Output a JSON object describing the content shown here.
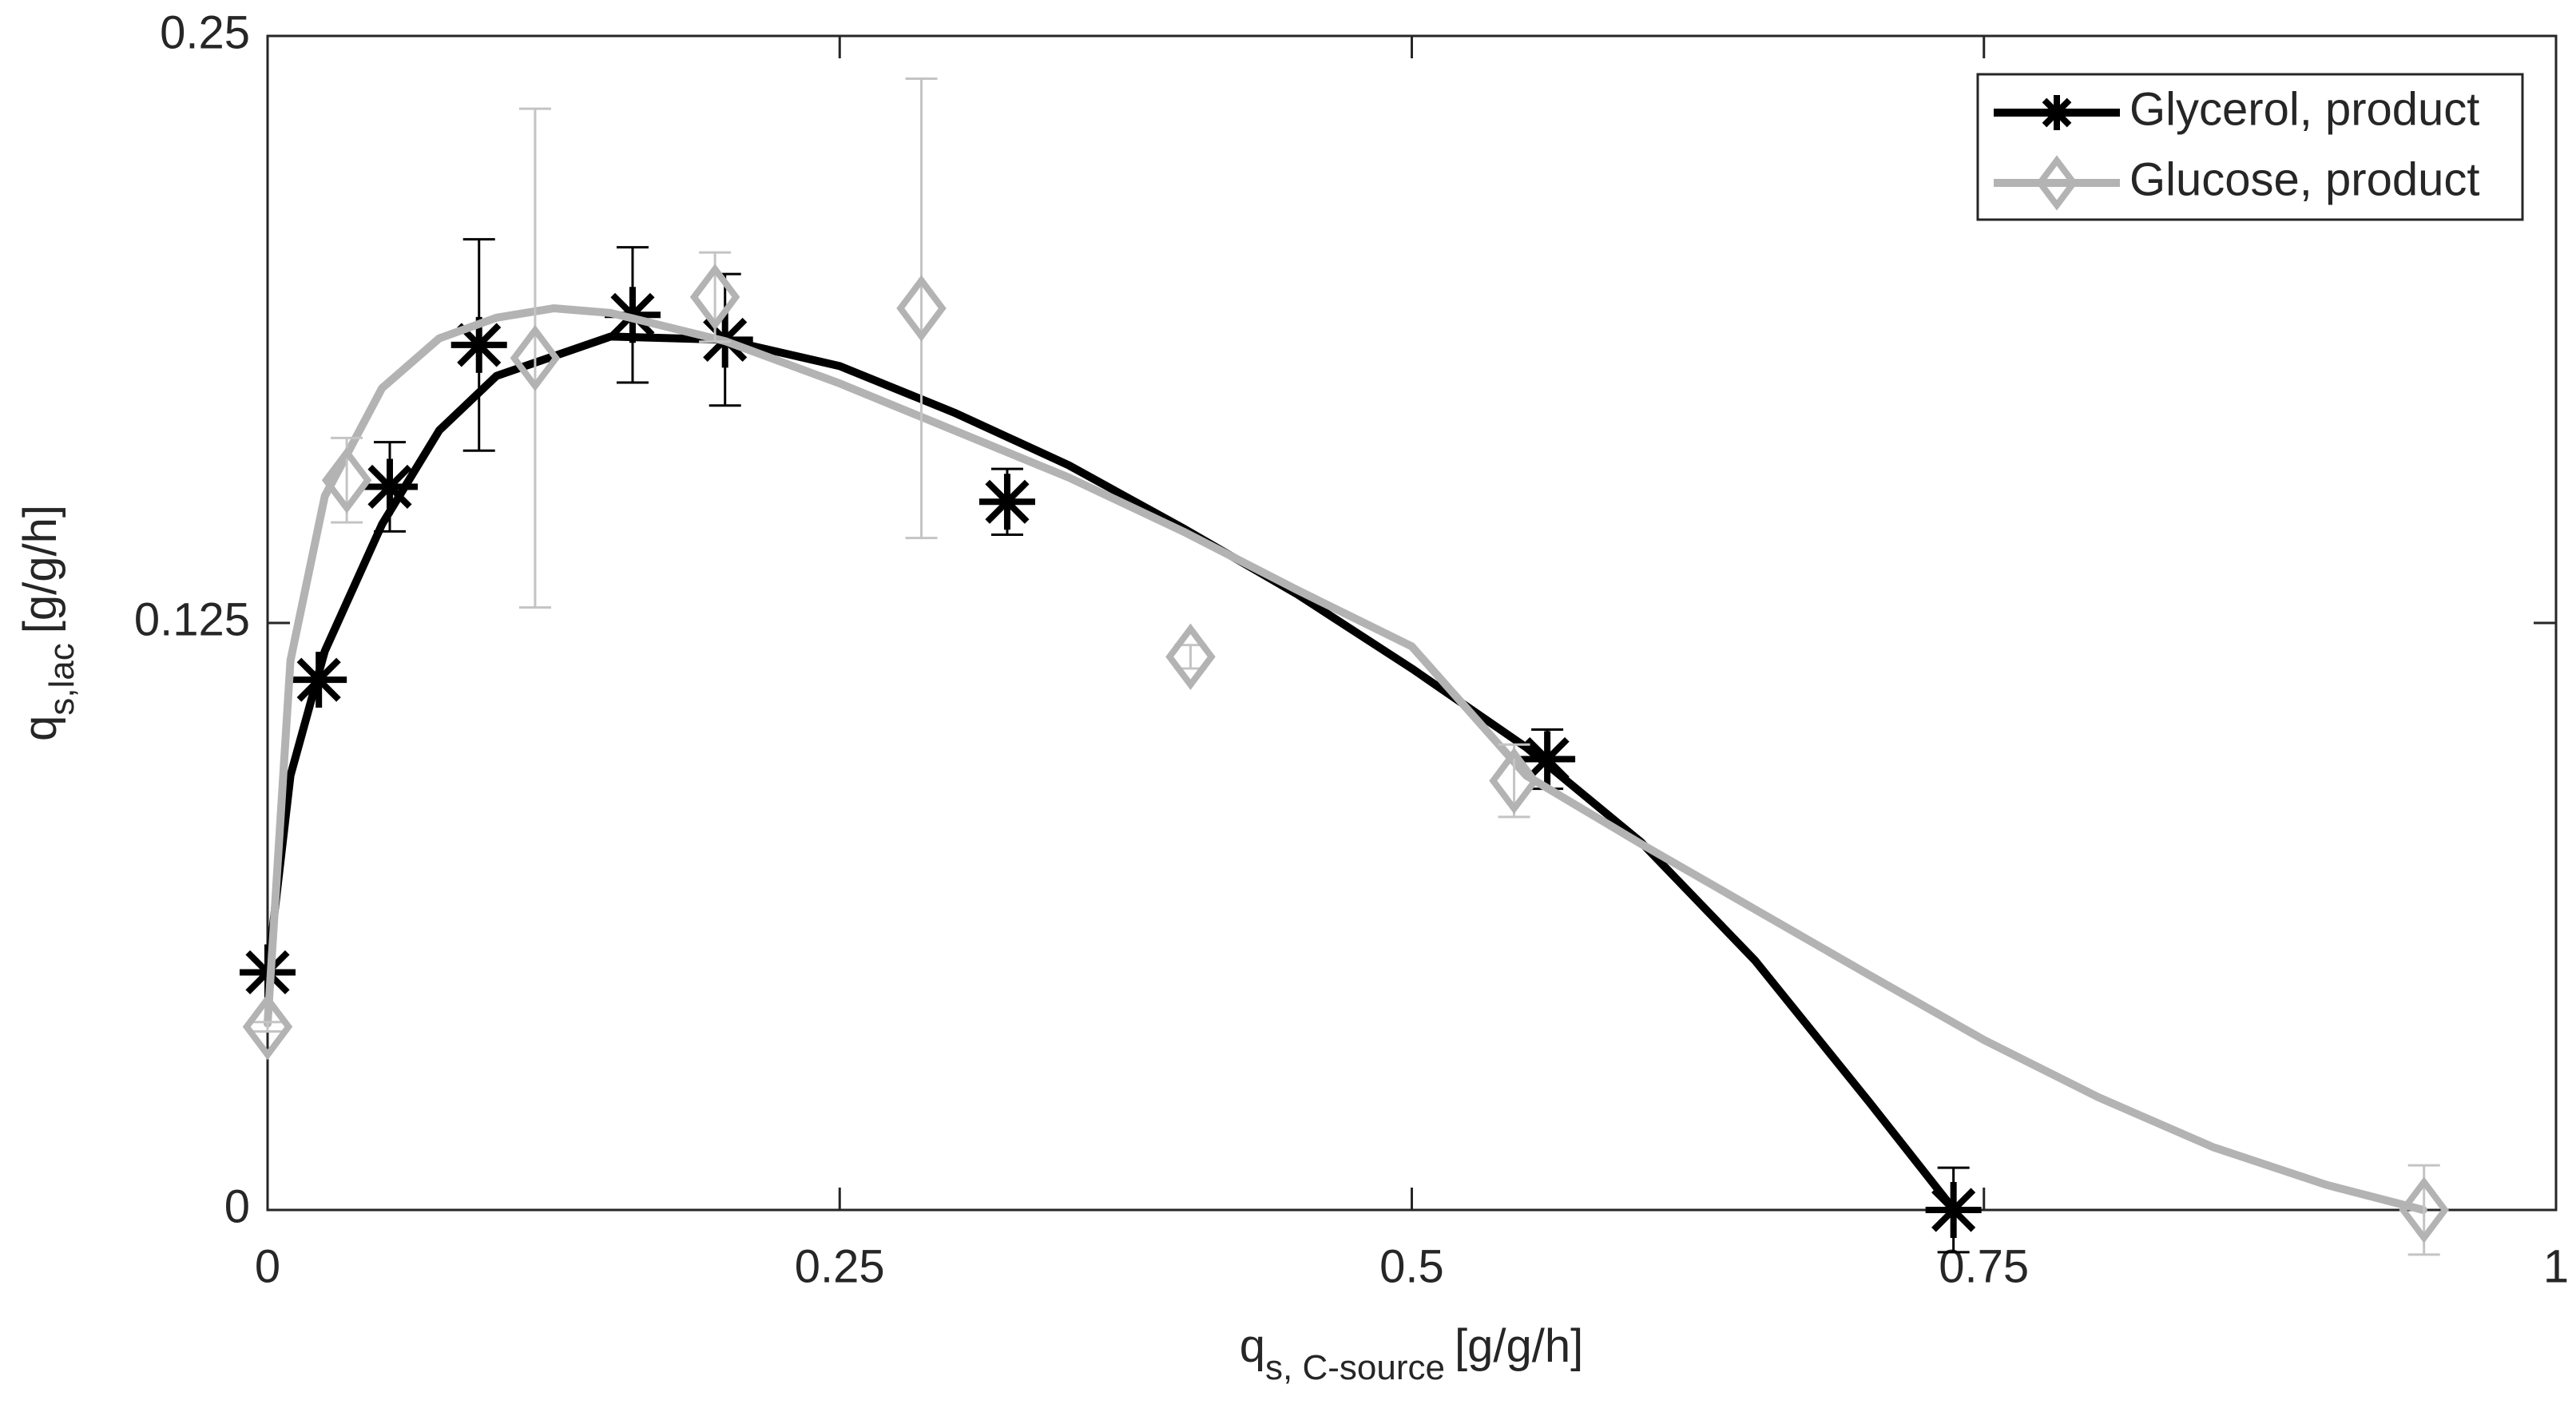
{
  "chart_data": {
    "type": "line",
    "xlabel": {
      "main": "q",
      "sub": "s, C-source",
      "unit": "[g/g/h]"
    },
    "ylabel": {
      "main": "q",
      "sub": "s,lac",
      "unit": "[g/g/h]"
    },
    "xlim": [
      0,
      1
    ],
    "xticks": [
      0,
      0.25,
      0.5,
      0.75,
      1
    ],
    "ylim": [
      0,
      0.25
    ],
    "yticks": [
      0,
      0.125,
      0.25
    ],
    "grid": false,
    "legend": "upper right",
    "series": [
      {
        "name": "Glycerol, product",
        "color": "#000000",
        "error_color": "#000000",
        "marker": "star",
        "x": [
          0,
          0.0224,
          0.0534,
          0.0924,
          0.1595,
          0.1999,
          0.3232,
          0.5592,
          0.7367
        ],
        "values": [
          0.0506,
          0.1129,
          0.154,
          0.1842,
          0.1906,
          0.1853,
          0.1508,
          0.096,
          0
        ],
        "errors": [
          0,
          0,
          0.0095,
          0.0225,
          0.0144,
          0.014,
          0.007,
          0.0063,
          0.009
        ],
        "fit_x": [
          0,
          0.01,
          0.025,
          0.05,
          0.075,
          0.1,
          0.15,
          0.2,
          0.25,
          0.3,
          0.35,
          0.4,
          0.45,
          0.5,
          0.55,
          0.6,
          0.65,
          0.7,
          0.737
        ],
        "fit_y": [
          0.0506,
          0.0925,
          0.119,
          0.146,
          0.166,
          0.1776,
          0.186,
          0.1853,
          0.1797,
          0.1698,
          0.1586,
          0.1452,
          0.1311,
          0.1153,
          0.0985,
          0.0784,
          0.0531,
          0.0229,
          0
        ]
      },
      {
        "name": "Glucose, product",
        "color": "#b3b3b3",
        "error_color": "#c4c4c4",
        "marker": "diamond",
        "x": [
          0,
          0.0346,
          0.1169,
          0.1955,
          0.2857,
          0.4033,
          0.5447,
          0.9423
        ],
        "values": [
          0.039,
          0.1554,
          0.1814,
          0.1944,
          0.192,
          0.1178,
          0.0914,
          0
        ],
        "errors": [
          0.001,
          0.009,
          0.0531,
          0.0095,
          0.0489,
          0.0025,
          0.0077,
          0.0095
        ],
        "fit_x": [
          0,
          0.01,
          0.025,
          0.05,
          0.075,
          0.1,
          0.125,
          0.15,
          0.2,
          0.25,
          0.3,
          0.35,
          0.4,
          0.45,
          0.5,
          0.55,
          0.6,
          0.65,
          0.7,
          0.75,
          0.8,
          0.85,
          0.9,
          0.942
        ],
        "fit_y": [
          0.0397,
          0.117,
          0.152,
          0.175,
          0.1856,
          0.19,
          0.192,
          0.191,
          0.185,
          0.176,
          0.166,
          0.156,
          0.1445,
          0.132,
          0.12,
          0.0925,
          0.078,
          0.064,
          0.05,
          0.0362,
          0.024,
          0.0134,
          0.0053,
          0
        ]
      }
    ]
  }
}
